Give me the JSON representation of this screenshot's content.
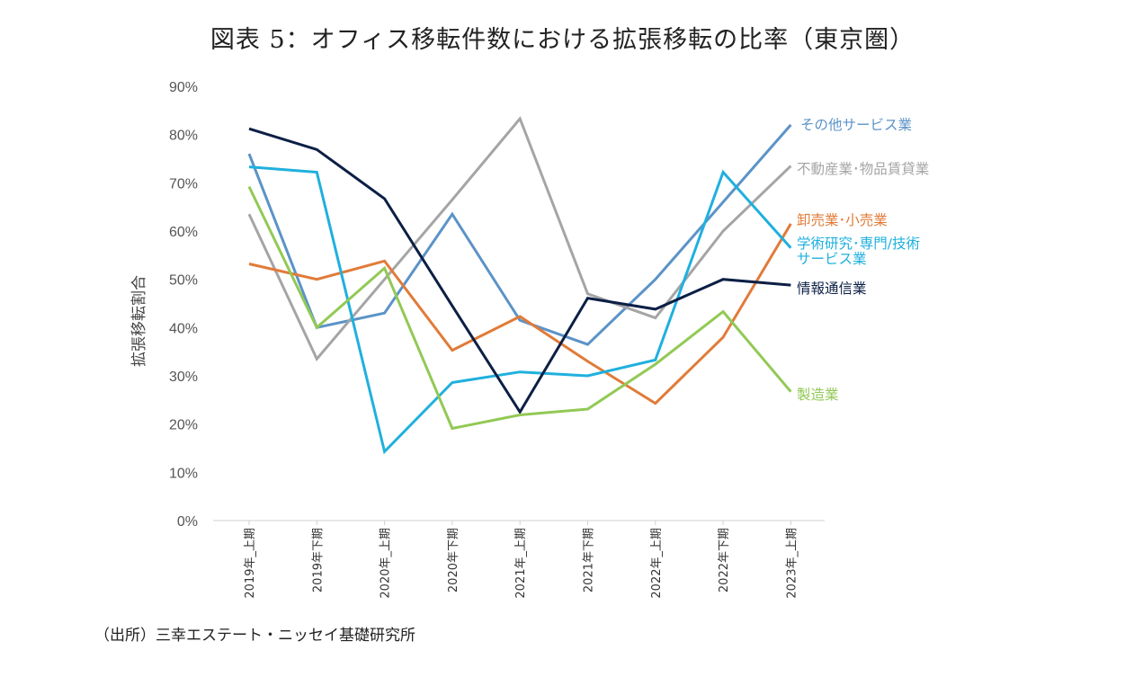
{
  "title": "図表 5：オフィス移転件数における拡張移転の比率（東京圏）",
  "source": "（出所）三幸エステート・ニッセイ基礎研究所",
  "chart_data": {
    "type": "line",
    "ylabel": "拡張移転割合",
    "ylim": [
      0,
      90
    ],
    "y_ticks": [
      0,
      10,
      20,
      30,
      40,
      50,
      60,
      70,
      80,
      90
    ],
    "y_tick_labels": [
      "0%",
      "10%",
      "20%",
      "30%",
      "40%",
      "50%",
      "60%",
      "70%",
      "80%",
      "90%"
    ],
    "categories": [
      "2019年_上期",
      "2019年下期",
      "2020年_上期",
      "2020年下期",
      "2021年_上期",
      "2021年下期",
      "2022年_上期",
      "2022年下期",
      "2023年_上期"
    ],
    "grid": false,
    "legend": "end-of-line labels (right)",
    "series": [
      {
        "name": "その他サービス業",
        "color": "#5b93c7",
        "values": [
          76,
          40,
          43,
          63.5,
          41.5,
          36.5,
          50,
          66,
          82
        ]
      },
      {
        "name": "不動産業･物品賃貸業",
        "color": "#a5a5a5",
        "values": [
          63.5,
          33.5,
          50,
          66.5,
          83.3,
          47,
          42,
          60,
          73.5
        ]
      },
      {
        "name": "卸売業･小売業",
        "color": "#e07b39",
        "values": [
          53.2,
          50,
          53.8,
          35.3,
          42.3,
          33,
          24.3,
          38,
          61.5
        ]
      },
      {
        "name": "学術研究･専門/技術サービス業",
        "color": "#1fb0de",
        "values": [
          73.3,
          72.2,
          14.3,
          28.6,
          30.8,
          30,
          33.3,
          72.2,
          56.5
        ]
      },
      {
        "name": "情報通信業",
        "color": "#0c1f45",
        "values": [
          81.2,
          76.9,
          66.7,
          44.5,
          22.5,
          46.1,
          43.8,
          50,
          48.8
        ]
      },
      {
        "name": "製造業",
        "color": "#92c955",
        "values": [
          69.2,
          40,
          52.3,
          19.1,
          21.9,
          23.1,
          32.4,
          43.3,
          26.7
        ]
      }
    ],
    "series_labels": [
      {
        "lines": [
          "その他サービス業"
        ]
      },
      {
        "lines": [
          "不動産業･物品賃貸業"
        ]
      },
      {
        "lines": [
          "卸売業･小売業"
        ]
      },
      {
        "lines": [
          "学術研究･専門/技術",
          "サービス業"
        ]
      },
      {
        "lines": [
          "情報通信業"
        ]
      },
      {
        "lines": [
          "製造業"
        ]
      }
    ]
  }
}
